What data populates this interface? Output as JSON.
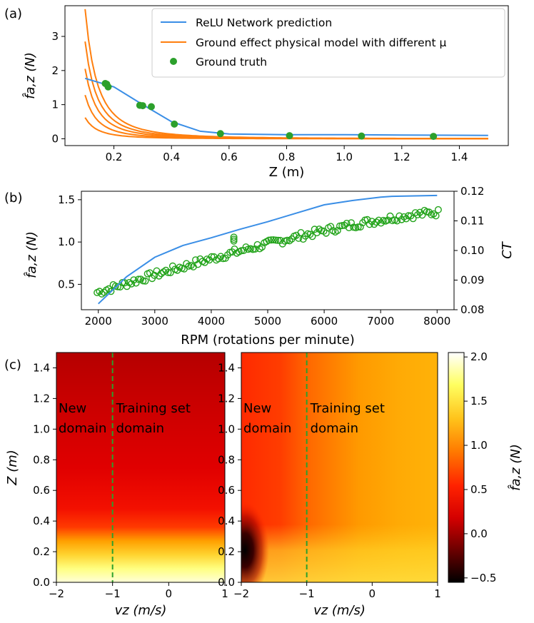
{
  "panel_labels": [
    "(a)",
    "(b)",
    "(c)"
  ],
  "chart_data": [
    {
      "type": "line",
      "panel": "(a)",
      "xlabel": "Z (m)",
      "ylabel": "f̂a,z (N)",
      "xlim": [
        0.03,
        1.57
      ],
      "ylim": [
        -0.2,
        3.9
      ],
      "xticks": [
        "0.2",
        "0.4",
        "0.6",
        "0.8",
        "1.0",
        "1.2",
        "1.4"
      ],
      "yticks": [
        "0",
        "1",
        "2",
        "3"
      ],
      "legend": [
        "ReLU Network prediction",
        "Ground effect physical model with different μ",
        "Ground truth"
      ],
      "colors": {
        "network": "#3a8ee6",
        "model": "#ff7f0e",
        "truth": "#2ca02c"
      },
      "series": [
        {
          "name": "ReLU Network prediction",
          "x": [
            0.1,
            0.2,
            0.3,
            0.4,
            0.5,
            0.6,
            0.8,
            1.0,
            1.2,
            1.5
          ],
          "y": [
            1.77,
            1.52,
            1.0,
            0.5,
            0.22,
            0.14,
            0.12,
            0.12,
            0.11,
            0.1
          ]
        },
        {
          "name": "Ground effect physical model with different μ",
          "mu_scale": [
            3.8,
            2.85,
            2.05,
            1.28,
            0.62
          ]
        },
        {
          "name": "Ground truth",
          "x": [
            0.17,
            0.175,
            0.18,
            0.29,
            0.3,
            0.33,
            0.41,
            0.57,
            0.81,
            1.06,
            1.31
          ],
          "y": [
            1.62,
            1.6,
            1.52,
            0.98,
            0.97,
            0.94,
            0.43,
            0.15,
            0.09,
            0.08,
            0.07
          ]
        }
      ]
    },
    {
      "type": "line",
      "panel": "(b)",
      "xlabel": "RPM (rotations per minute)",
      "ylabel": "f̂a,z (N)",
      "y2label": "CT",
      "xlim": [
        1700,
        8300
      ],
      "ylim": [
        0.2,
        1.6
      ],
      "y2lim": [
        0.08,
        0.12
      ],
      "xticks": [
        "2000",
        "3000",
        "4000",
        "5000",
        "6000",
        "7000",
        "8000"
      ],
      "yticks": [
        "0.5",
        "1.0",
        "1.5"
      ],
      "y2ticks": [
        "0.08",
        "0.09",
        "0.10",
        "0.11",
        "0.12"
      ],
      "colors": {
        "force": "#3a8ee6",
        "ct": "#22a31a"
      },
      "series": [
        {
          "name": "f̂a,z",
          "x": [
            2000,
            2500,
            3000,
            3500,
            4000,
            4500,
            5000,
            5500,
            6000,
            6500,
            7000,
            7200,
            8000
          ],
          "y": [
            0.27,
            0.59,
            0.82,
            0.96,
            1.05,
            1.15,
            1.24,
            1.34,
            1.44,
            1.49,
            1.53,
            1.54,
            1.55
          ]
        },
        {
          "name": "CT",
          "x_start": 1980,
          "x_end": 8020,
          "count": 150,
          "y_start": 0.0858,
          "y_end": 0.1128
        }
      ]
    },
    {
      "type": "heatmap",
      "panel": "(c) left",
      "xlabel": "vz (m/s)",
      "ylabel": "Z (m)",
      "xlim": [
        -2,
        1
      ],
      "ylim": [
        0,
        1.5
      ],
      "xticks": [
        "−2",
        "−1",
        "0",
        "1"
      ],
      "yticks": [
        "0.0",
        "0.2",
        "0.4",
        "0.6",
        "0.8",
        "1.0",
        "1.2",
        "1.4"
      ],
      "divider_vz": -1,
      "annotations": {
        "left": [
          "New",
          "domain"
        ],
        "right": [
          "Training set",
          "domain"
        ]
      },
      "bands": [
        {
          "z": 1.5,
          "value": 0.15
        },
        {
          "z": 1.2,
          "value": 0.22
        },
        {
          "z": 0.8,
          "value": 0.3
        },
        {
          "z": 0.5,
          "value": 0.42
        },
        {
          "z": 0.3,
          "value": 0.65
        },
        {
          "z": 0.2,
          "value": 1.45
        },
        {
          "z": 0.1,
          "value": 1.8
        },
        {
          "z": 0.0,
          "value": 2.0
        }
      ]
    },
    {
      "type": "heatmap",
      "panel": "(c) right",
      "xlabel": "vz (m/s)",
      "xlim": [
        -2,
        1
      ],
      "ylim": [
        0,
        1.5
      ],
      "xticks": [
        "−2",
        "−1",
        "0",
        "1"
      ],
      "yticks": [
        "0.0",
        "0.2",
        "0.4",
        "0.6",
        "0.8",
        "1.0",
        "1.2",
        "1.4"
      ],
      "divider_vz": -1,
      "annotations": {
        "left": [
          "New",
          "domain"
        ],
        "right": [
          "Training set",
          "domain"
        ]
      },
      "gradient_vz": [
        {
          "vz": -2.0,
          "value": 0.45
        },
        {
          "vz": -1.5,
          "value": 0.55
        },
        {
          "vz": -1.0,
          "value": 0.7
        },
        {
          "vz": -0.3,
          "value": 1.0
        },
        {
          "vz": 0.3,
          "value": 1.25
        },
        {
          "vz": 1.0,
          "value": 1.4
        }
      ],
      "dark_spot": {
        "vz": -1.95,
        "z": 0.22,
        "value": -0.5
      }
    }
  ],
  "colorbar": {
    "label": "f̂a,z (N)",
    "range": [
      -0.55,
      2.05
    ],
    "ticks": [
      "−0.5",
      "0.0",
      "0.5",
      "1.0",
      "1.5",
      "2.0"
    ],
    "colormap": [
      "#000000",
      "#6b0000",
      "#d40000",
      "#ff2200",
      "#ff7a00",
      "#ffc21a",
      "#ffff60",
      "#ffffff"
    ]
  }
}
